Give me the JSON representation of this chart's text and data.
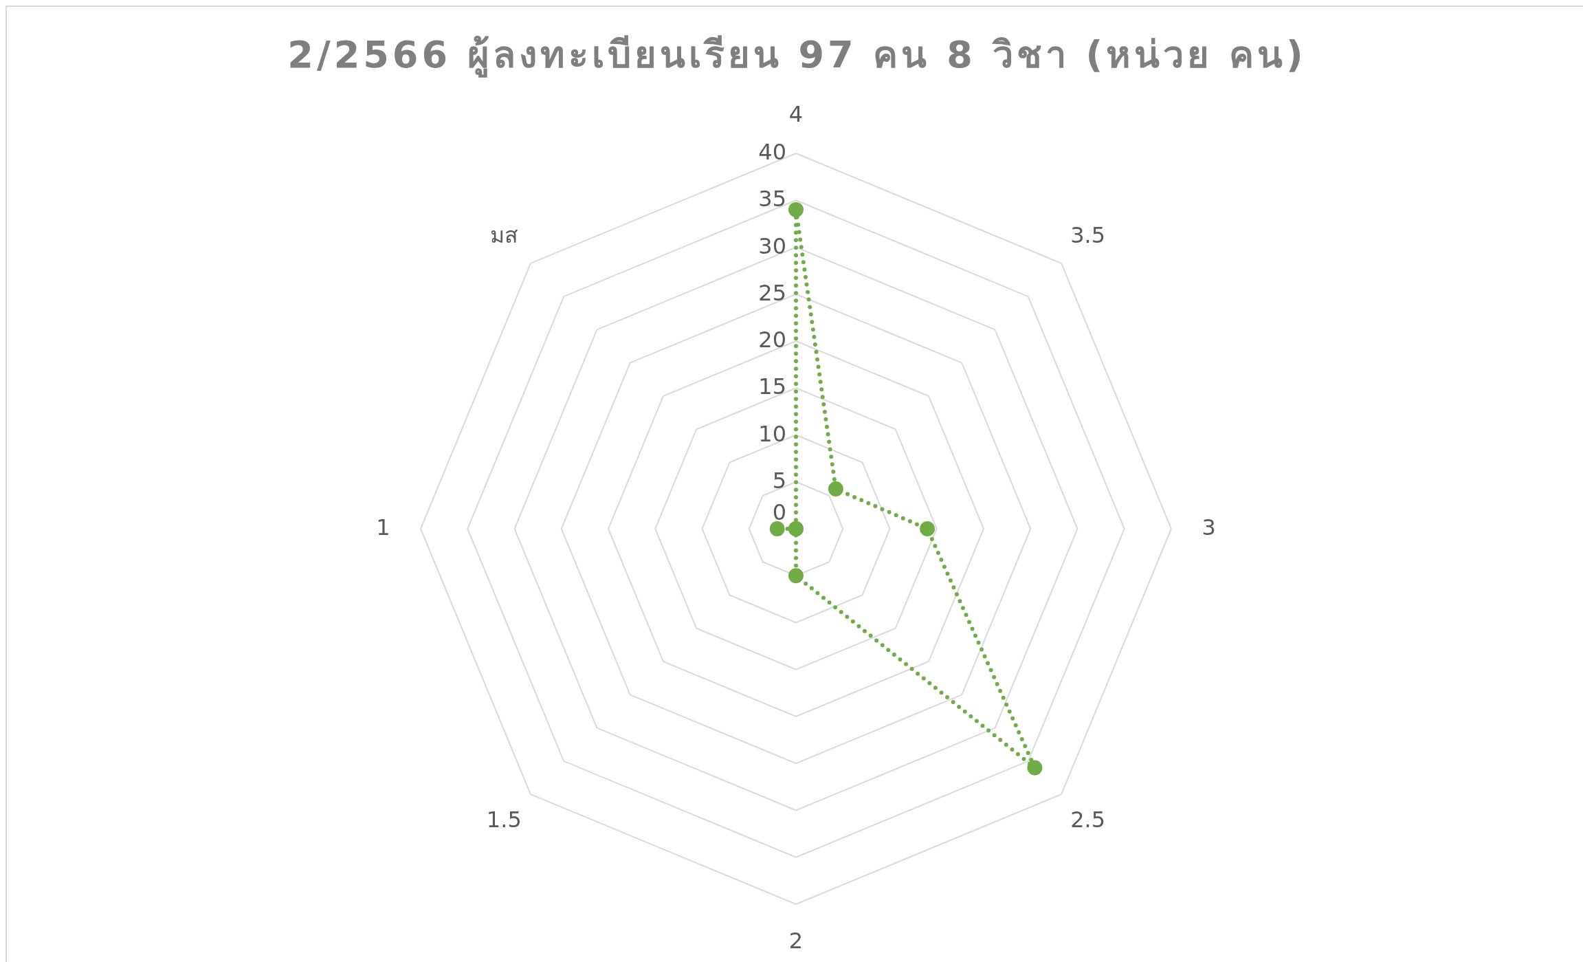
{
  "chart_data": {
    "type": "radar",
    "title": "2/2566 ผู้ลงทะเบียนเรียน 97 คน 8 วิชา (หน่วย คน)",
    "categories": [
      "4",
      "3.5",
      "3",
      "2.5",
      "2",
      "1.5",
      "1",
      "มส"
    ],
    "series": [
      {
        "color": "#70ad47",
        "values": [
          34,
          6,
          14,
          36,
          5,
          0,
          2,
          0
        ]
      }
    ],
    "ylim": [
      0,
      40
    ],
    "yticks": [
      0,
      5,
      10,
      15,
      20,
      25,
      30,
      35,
      40
    ],
    "grid": true,
    "marker": "circle",
    "line_style": "dotted"
  }
}
